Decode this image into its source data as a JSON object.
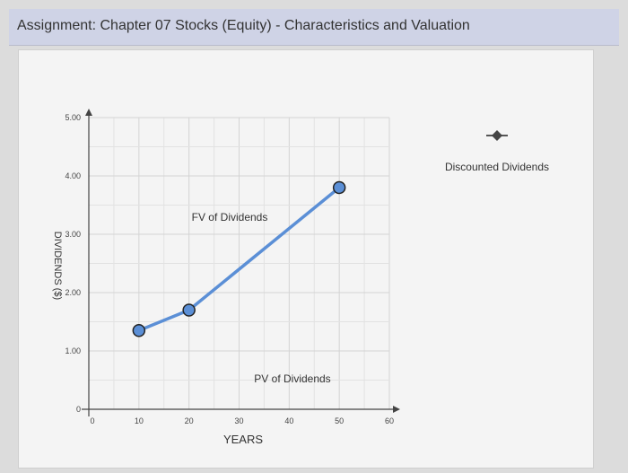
{
  "header": {
    "title": "Assignment: Chapter 07 Stocks (Equity) - Characteristics and Valuation"
  },
  "chart_data": {
    "type": "line",
    "xlabel": "YEARS",
    "ylabel": "DIVIDENDS ($)",
    "x_ticks": [
      "0",
      "10",
      "20",
      "30",
      "40",
      "50",
      "60"
    ],
    "y_ticks": [
      "0",
      "1.00",
      "2.00",
      "3.00",
      "4.00",
      "5.00"
    ],
    "xlim": [
      0,
      60
    ],
    "ylim": [
      0,
      5
    ],
    "grid": true,
    "series": [
      {
        "x": [
          10,
          20,
          50
        ],
        "y": [
          1.35,
          1.7,
          3.8
        ],
        "color": "#5b8fd6"
      }
    ],
    "annotations": {
      "fv": "FV of Dividends",
      "pv": "PV of Dividends"
    },
    "legend": {
      "label": "Discounted Dividends",
      "placement": "right"
    }
  }
}
